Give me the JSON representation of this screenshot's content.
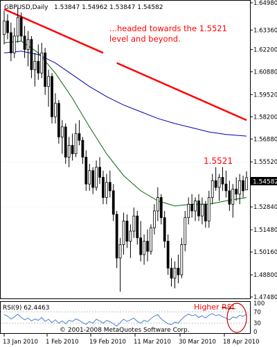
{
  "header": {
    "symbol": "GBPUSD,Daily",
    "ohlc": "1.53847 1.54962 1.53847 1.54582"
  },
  "annotations": {
    "main_note_line1": "...headed towards the 1.5521",
    "main_note_line2": "level and beyond.",
    "level_label": "1.5521",
    "rsi_note": "Higher RSI"
  },
  "rsi_panel": {
    "title": "RSI(9) 62.4463",
    "copyright": "© 2001-2008 MetaQuotes Software Corp.",
    "tick_labels": [
      "100",
      "70",
      "30",
      "0"
    ],
    "levels": [
      100,
      70,
      30,
      0
    ]
  },
  "y_axis_labels": [
    "1.64980",
    "1.63360",
    "1.62200",
    "1.60880",
    "1.59520",
    "1.58200",
    "1.56880",
    "1.55520",
    "1.54582",
    "1.52840",
    "1.51480",
    "1.50160",
    "1.48800",
    "1.47480"
  ],
  "x_axis_labels": [
    "13 Jan 2010",
    "1 Feb 2010",
    "19 Feb 2010",
    "11 Mar 2010",
    "30 Mar 2010",
    "18 Apr 2010"
  ],
  "colors": {
    "trendline": "#ff0000",
    "ma_slow": "#0000aa",
    "ma_fast": "#006600",
    "rsi_line": "#4a7fd0",
    "annotation_text": "#ff0000",
    "current_price_box": "#000000"
  },
  "chart_data": {
    "type": "candlestick",
    "symbol": "GBPUSD",
    "timeframe": "Daily",
    "current_price": 1.54582,
    "ylim": [
      1.4748,
      1.6498
    ],
    "y_ticks": [
      1.6498,
      1.6336,
      1.622,
      1.6088,
      1.5952,
      1.582,
      1.5688,
      1.5552,
      1.5284,
      1.5148,
      1.5016,
      1.488,
      1.4748
    ],
    "candles": [
      {
        "o": 1.631,
        "h": 1.645,
        "l": 1.625,
        "c": 1.639
      },
      {
        "o": 1.639,
        "h": 1.643,
        "l": 1.628,
        "c": 1.632
      },
      {
        "o": 1.632,
        "h": 1.638,
        "l": 1.615,
        "c": 1.62
      },
      {
        "o": 1.62,
        "h": 1.635,
        "l": 1.617,
        "c": 1.63
      },
      {
        "o": 1.63,
        "h": 1.647,
        "l": 1.626,
        "c": 1.641
      },
      {
        "o": 1.641,
        "h": 1.644,
        "l": 1.627,
        "c": 1.63
      },
      {
        "o": 1.63,
        "h": 1.636,
        "l": 1.617,
        "c": 1.622
      },
      {
        "o": 1.622,
        "h": 1.633,
        "l": 1.612,
        "c": 1.628
      },
      {
        "o": 1.628,
        "h": 1.63,
        "l": 1.605,
        "c": 1.61
      },
      {
        "o": 1.61,
        "h": 1.62,
        "l": 1.6,
        "c": 1.615
      },
      {
        "o": 1.615,
        "h": 1.625,
        "l": 1.604,
        "c": 1.608
      },
      {
        "o": 1.608,
        "h": 1.626,
        "l": 1.605,
        "c": 1.62
      },
      {
        "o": 1.62,
        "h": 1.623,
        "l": 1.595,
        "c": 1.6
      },
      {
        "o": 1.6,
        "h": 1.61,
        "l": 1.588,
        "c": 1.606
      },
      {
        "o": 1.606,
        "h": 1.608,
        "l": 1.578,
        "c": 1.582
      },
      {
        "o": 1.582,
        "h": 1.596,
        "l": 1.578,
        "c": 1.59
      },
      {
        "o": 1.59,
        "h": 1.592,
        "l": 1.566,
        "c": 1.57
      },
      {
        "o": 1.57,
        "h": 1.58,
        "l": 1.56,
        "c": 1.576
      },
      {
        "o": 1.576,
        "h": 1.578,
        "l": 1.554,
        "c": 1.558
      },
      {
        "o": 1.558,
        "h": 1.57,
        "l": 1.552,
        "c": 1.565
      },
      {
        "o": 1.565,
        "h": 1.572,
        "l": 1.556,
        "c": 1.56
      },
      {
        "o": 1.56,
        "h": 1.578,
        "l": 1.558,
        "c": 1.572
      },
      {
        "o": 1.572,
        "h": 1.58,
        "l": 1.565,
        "c": 1.568
      },
      {
        "o": 1.568,
        "h": 1.57,
        "l": 1.554,
        "c": 1.558
      },
      {
        "o": 1.558,
        "h": 1.562,
        "l": 1.538,
        "c": 1.542
      },
      {
        "o": 1.542,
        "h": 1.554,
        "l": 1.538,
        "c": 1.55
      },
      {
        "o": 1.55,
        "h": 1.552,
        "l": 1.536,
        "c": 1.54
      },
      {
        "o": 1.54,
        "h": 1.556,
        "l": 1.538,
        "c": 1.552
      },
      {
        "o": 1.552,
        "h": 1.558,
        "l": 1.542,
        "c": 1.546
      },
      {
        "o": 1.546,
        "h": 1.55,
        "l": 1.53,
        "c": 1.534
      },
      {
        "o": 1.534,
        "h": 1.548,
        "l": 1.53,
        "c": 1.543
      },
      {
        "o": 1.543,
        "h": 1.55,
        "l": 1.534,
        "c": 1.538
      },
      {
        "o": 1.538,
        "h": 1.542,
        "l": 1.52,
        "c": 1.524
      },
      {
        "o": 1.524,
        "h": 1.526,
        "l": 1.492,
        "c": 1.498
      },
      {
        "o": 1.498,
        "h": 1.51,
        "l": 1.478,
        "c": 1.506
      },
      {
        "o": 1.506,
        "h": 1.525,
        "l": 1.5,
        "c": 1.52
      },
      {
        "o": 1.52,
        "h": 1.524,
        "l": 1.504,
        "c": 1.508
      },
      {
        "o": 1.508,
        "h": 1.518,
        "l": 1.498,
        "c": 1.514
      },
      {
        "o": 1.514,
        "h": 1.528,
        "l": 1.51,
        "c": 1.523
      },
      {
        "o": 1.523,
        "h": 1.526,
        "l": 1.506,
        "c": 1.51
      },
      {
        "o": 1.51,
        "h": 1.52,
        "l": 1.496,
        "c": 1.5
      },
      {
        "o": 1.5,
        "h": 1.512,
        "l": 1.494,
        "c": 1.508
      },
      {
        "o": 1.508,
        "h": 1.515,
        "l": 1.496,
        "c": 1.502
      },
      {
        "o": 1.502,
        "h": 1.518,
        "l": 1.5,
        "c": 1.516
      },
      {
        "o": 1.516,
        "h": 1.53,
        "l": 1.512,
        "c": 1.526
      },
      {
        "o": 1.526,
        "h": 1.54,
        "l": 1.52,
        "c": 1.534
      },
      {
        "o": 1.534,
        "h": 1.536,
        "l": 1.518,
        "c": 1.522
      },
      {
        "o": 1.522,
        "h": 1.526,
        "l": 1.504,
        "c": 1.508
      },
      {
        "o": 1.508,
        "h": 1.512,
        "l": 1.488,
        "c": 1.492
      },
      {
        "o": 1.492,
        "h": 1.498,
        "l": 1.481,
        "c": 1.486
      },
      {
        "o": 1.486,
        "h": 1.496,
        "l": 1.48,
        "c": 1.492
      },
      {
        "o": 1.492,
        "h": 1.5,
        "l": 1.483,
        "c": 1.488
      },
      {
        "o": 1.488,
        "h": 1.51,
        "l": 1.486,
        "c": 1.506
      },
      {
        "o": 1.506,
        "h": 1.526,
        "l": 1.502,
        "c": 1.522
      },
      {
        "o": 1.522,
        "h": 1.534,
        "l": 1.518,
        "c": 1.53
      },
      {
        "o": 1.53,
        "h": 1.536,
        "l": 1.522,
        "c": 1.526
      },
      {
        "o": 1.526,
        "h": 1.534,
        "l": 1.52,
        "c": 1.532
      },
      {
        "o": 1.532,
        "h": 1.536,
        "l": 1.52,
        "c": 1.523
      },
      {
        "o": 1.523,
        "h": 1.534,
        "l": 1.518,
        "c": 1.53
      },
      {
        "o": 1.53,
        "h": 1.532,
        "l": 1.516,
        "c": 1.52
      },
      {
        "o": 1.52,
        "h": 1.538,
        "l": 1.516,
        "c": 1.534
      },
      {
        "o": 1.534,
        "h": 1.548,
        "l": 1.53,
        "c": 1.544
      },
      {
        "o": 1.544,
        "h": 1.552,
        "l": 1.538,
        "c": 1.54
      },
      {
        "o": 1.54,
        "h": 1.548,
        "l": 1.532,
        "c": 1.546
      },
      {
        "o": 1.546,
        "h": 1.5521,
        "l": 1.538,
        "c": 1.542
      },
      {
        "o": 1.542,
        "h": 1.55,
        "l": 1.534,
        "c": 1.538
      },
      {
        "o": 1.538,
        "h": 1.544,
        "l": 1.526,
        "c": 1.53
      },
      {
        "o": 1.53,
        "h": 1.542,
        "l": 1.522,
        "c": 1.539
      },
      {
        "o": 1.539,
        "h": 1.546,
        "l": 1.532,
        "c": 1.536
      },
      {
        "o": 1.536,
        "h": 1.548,
        "l": 1.53,
        "c": 1.544
      },
      {
        "o": 1.544,
        "h": 1.547,
        "l": 1.534,
        "c": 1.538
      },
      {
        "o": 1.5385,
        "h": 1.5496,
        "l": 1.5385,
        "c": 1.5458
      }
    ],
    "moving_averages": [
      {
        "color": "#0000aa",
        "points": [
          [
            0,
            1.62
          ],
          [
            5,
            1.621
          ],
          [
            10,
            1.619
          ],
          [
            15,
            1.614
          ],
          [
            20,
            1.607
          ],
          [
            25,
            1.6
          ],
          [
            30,
            1.594
          ],
          [
            35,
            1.589
          ],
          [
            40,
            1.585
          ],
          [
            45,
            1.581
          ],
          [
            50,
            1.578
          ],
          [
            55,
            1.5755
          ],
          [
            60,
            1.573
          ],
          [
            65,
            1.5715
          ],
          [
            71,
            1.5705
          ]
        ]
      },
      {
        "color": "#006600",
        "points": [
          [
            0,
            1.626
          ],
          [
            5,
            1.627
          ],
          [
            10,
            1.62
          ],
          [
            15,
            1.608
          ],
          [
            20,
            1.593
          ],
          [
            25,
            1.576
          ],
          [
            30,
            1.56
          ],
          [
            35,
            1.547
          ],
          [
            40,
            1.538
          ],
          [
            45,
            1.532
          ],
          [
            50,
            1.529
          ],
          [
            55,
            1.53
          ],
          [
            60,
            1.53
          ],
          [
            65,
            1.532
          ],
          [
            71,
            1.534
          ]
        ]
      }
    ],
    "trendline": {
      "color": "#ff0000",
      "segments": [
        {
          "from": [
            0,
            1.646
          ],
          "to": [
            29,
            1.62
          ]
        },
        {
          "from": [
            33,
            1.614
          ],
          "to": [
            71,
            1.58
          ]
        }
      ]
    },
    "rsi": {
      "period": 9,
      "current": 62.4463,
      "ylim": [
        0,
        100
      ],
      "levels": [
        30,
        70
      ],
      "values": [
        60,
        55,
        45,
        52,
        62,
        50,
        42,
        48,
        38,
        45,
        40,
        50,
        36,
        44,
        32,
        42,
        30,
        38,
        28,
        40,
        36,
        45,
        40,
        32,
        26,
        36,
        30,
        44,
        38,
        30,
        40,
        35,
        28,
        20,
        32,
        44,
        36,
        42,
        48,
        36,
        30,
        40,
        35,
        46,
        55,
        60,
        45,
        36,
        28,
        25,
        34,
        30,
        44,
        55,
        62,
        56,
        60,
        50,
        56,
        48,
        58,
        64,
        56,
        60,
        52,
        48,
        42,
        52,
        48,
        58,
        54,
        62.4463
      ]
    },
    "x_labels": [
      "13 Jan 2010",
      "1 Feb 2010",
      "19 Feb 2010",
      "11 Mar 2010",
      "30 Mar 2010",
      "18 Apr 2010"
    ]
  }
}
